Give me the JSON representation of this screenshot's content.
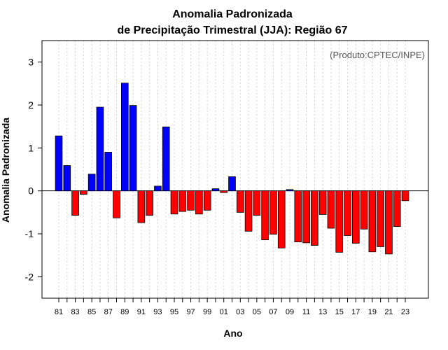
{
  "chart_data": {
    "type": "bar",
    "title_line1": "Anomalia Padronizada",
    "title_line2": "de Precipitação Trimestral (JJA): Região 67",
    "xlabel": "Ano",
    "ylabel": "Anomalia Padronizada",
    "credit": "(Produto:CPTEC/INPE)",
    "ylim": [
      -2.5,
      3.5
    ],
    "yticks": [
      -2,
      -1,
      0,
      1,
      2,
      3
    ],
    "positive_color": "#0000ff",
    "negative_color": "#ff0000",
    "categories": [
      "81",
      "82",
      "83",
      "84",
      "85",
      "86",
      "87",
      "88",
      "89",
      "90",
      "91",
      "92",
      "93",
      "94",
      "95",
      "96",
      "97",
      "98",
      "99",
      "00",
      "01",
      "02",
      "03",
      "04",
      "05",
      "06",
      "07",
      "08",
      "09",
      "10",
      "11",
      "12",
      "13",
      "14",
      "15",
      "16",
      "17",
      "18",
      "19",
      "20",
      "21",
      "22",
      "23"
    ],
    "x_tick_labels": [
      "81",
      "83",
      "85",
      "87",
      "89",
      "91",
      "93",
      "95",
      "97",
      "99",
      "01",
      "03",
      "05",
      "07",
      "09",
      "11",
      "13",
      "15",
      "17",
      "19",
      "21",
      "23"
    ],
    "values": [
      1.28,
      0.59,
      -0.57,
      -0.08,
      0.39,
      1.95,
      0.9,
      -0.63,
      2.51,
      1.99,
      -0.74,
      -0.57,
      0.11,
      1.49,
      -0.54,
      -0.48,
      -0.45,
      -0.54,
      -0.45,
      0.05,
      -0.04,
      0.33,
      -0.5,
      -0.94,
      -0.57,
      -1.14,
      -1.01,
      -1.33,
      0.03,
      -1.19,
      -1.21,
      -1.27,
      -0.55,
      -0.87,
      -1.43,
      -1.04,
      -1.22,
      -0.89,
      -1.42,
      -1.3,
      -1.47,
      -0.83,
      -0.23
    ]
  }
}
